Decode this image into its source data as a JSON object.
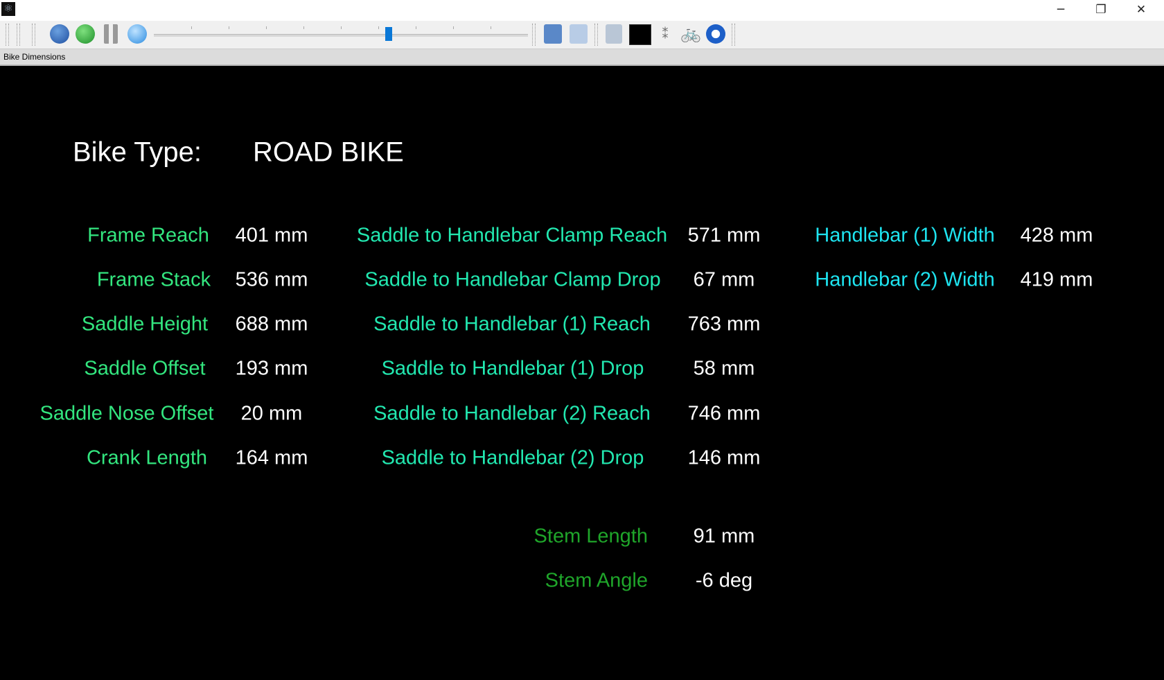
{
  "window": {
    "tab_title": "Bike Dimensions",
    "minimize": "─",
    "maximize": "❐",
    "close": "✕"
  },
  "toolbar": {
    "icons": [
      "refresh-icon",
      "play-icon",
      "pause-icon",
      "stop-icon",
      "save-icon",
      "save-as-icon",
      "log-icon",
      "chart-icon",
      "disconnect-icon",
      "cyclist-icon",
      "sync-icon"
    ],
    "slider_value_fraction": 0.63
  },
  "bike_type": {
    "label": "Bike Type:",
    "value": "ROAD BIKE"
  },
  "frame": [
    {
      "label": "Frame Reach",
      "value": "401 mm"
    },
    {
      "label": "Frame Stack",
      "value": "536 mm"
    },
    {
      "label": "Saddle Height",
      "value": "688 mm"
    },
    {
      "label": "Saddle Offset",
      "value": "193 mm"
    },
    {
      "label": "Saddle Nose Offset",
      "value": "20 mm"
    },
    {
      "label": "Crank Length",
      "value": "164 mm"
    }
  ],
  "saddle_handlebar": [
    {
      "label": "Saddle to Handlebar Clamp Reach",
      "value": "571 mm"
    },
    {
      "label": "Saddle to Handlebar Clamp Drop",
      "value": "67 mm"
    },
    {
      "label": "Saddle to Handlebar (1) Reach",
      "value": "763 mm"
    },
    {
      "label": "Saddle to Handlebar (1) Drop",
      "value": "58 mm"
    },
    {
      "label": "Saddle to Handlebar (2) Reach",
      "value": "746 mm"
    },
    {
      "label": "Saddle to Handlebar (2) Drop",
      "value": "146 mm"
    }
  ],
  "handlebar": [
    {
      "label": "Handlebar (1) Width",
      "value": "428 mm"
    },
    {
      "label": "Handlebar (2) Width",
      "value": "419 mm"
    }
  ],
  "stem": [
    {
      "label": "Stem Length",
      "value": "91 mm"
    },
    {
      "label": "Stem Angle",
      "value": "-6 deg"
    }
  ],
  "colors": {
    "frame_label": "#33e67f",
    "saddle_label": "#22e8b0",
    "handlebar_label": "#1ee4f0",
    "stem_label": "#1fa52a",
    "value": "#ffffff",
    "background": "#000000"
  }
}
